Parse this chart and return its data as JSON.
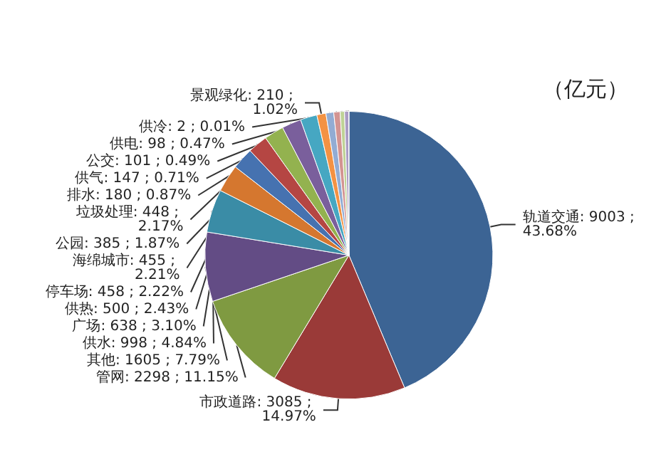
{
  "chart_data": {
    "type": "pie",
    "annotations": [
      "（亿元）"
    ],
    "categories": [
      "轨道交通",
      "市政道路",
      "管网",
      "其他",
      "供水",
      "广场",
      "供热",
      "停车场",
      "海绵城市",
      "垃圾处理",
      "公园",
      "景观绿化",
      "排水",
      "供气",
      "公交",
      "供电",
      "供冷"
    ],
    "values": [
      9003,
      3085,
      2298,
      1605,
      998,
      638,
      500,
      458,
      455,
      448,
      385,
      210,
      180,
      147,
      101,
      98,
      2
    ],
    "value_labels": [
      "9003 ; 43.68%",
      "3085 ; 14.97%",
      "2298 ; 11.15%",
      "1605 ; 7.79%",
      "998 ; 4.84%",
      "638 ; 3.10%",
      "500 ; 2.43%",
      "458 ; 2.22%",
      "455 ; 2.21%",
      "448 ; 2.17%",
      "385 ; 1.87%",
      "210 ; 1.02%",
      "180 ; 0.87%",
      "147 ; 0.71%",
      "101 ; 0.49%",
      "98 ; 0.47%",
      "2 ; 0.01%"
    ],
    "colors": [
      "#3c6494",
      "#9a3a38",
      "#7f9a41",
      "#634c85",
      "#3a8ca6",
      "#d5772f",
      "#4672b0",
      "#b54643",
      "#93b24f",
      "#7a5f9c",
      "#46a7c2",
      "#f39243",
      "#92acd3",
      "#d39492",
      "#bfd296",
      "#ab9cc4",
      "#8fc5d8"
    ],
    "legend": false
  }
}
